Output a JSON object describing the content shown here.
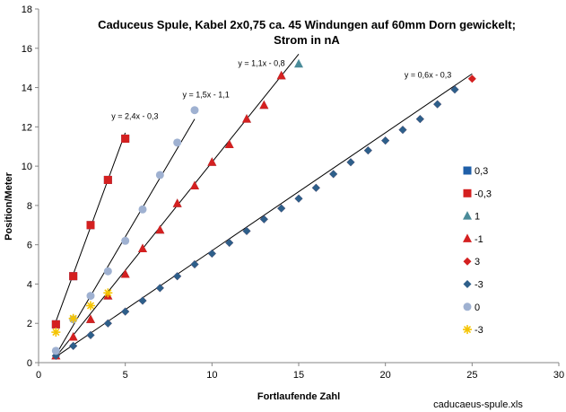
{
  "chart_data": {
    "type": "scatter",
    "title_lines": [
      "Caduceus Spule,   Kabel  2x0,75   ca. 45 Windungen auf 60mm Dorn gewickelt;",
      "Strom in nA"
    ],
    "xlabel": "Fortlaufende Zahl",
    "ylabel": "Position/Meter",
    "xlim": [
      0,
      30
    ],
    "ylim": [
      0,
      18
    ],
    "xticks": [
      0,
      5,
      10,
      15,
      20,
      25,
      30
    ],
    "yticks": [
      0,
      2,
      4,
      6,
      8,
      10,
      12,
      14,
      16,
      18
    ],
    "grid": false,
    "legend_position": "right",
    "footer": "caducaeus-spule.xls",
    "series": [
      {
        "name": "0,3",
        "marker": "square",
        "color": "#1F5FA8",
        "x": [
          1,
          2,
          3,
          4,
          5
        ],
        "y": [
          1.95,
          4.4,
          7.0,
          9.3,
          11.4
        ]
      },
      {
        "name": "-0,3",
        "marker": "square",
        "color": "#D42020",
        "x": [
          1,
          2,
          3,
          4,
          5
        ],
        "y": [
          1.95,
          4.4,
          7.0,
          9.3,
          11.4
        ]
      },
      {
        "name": "1",
        "marker": "triangle",
        "color": "#4A8B99",
        "x": [
          1,
          2,
          3,
          4,
          5,
          6,
          7,
          8,
          9,
          10,
          11,
          12,
          13,
          14,
          15
        ],
        "y": [
          0.35,
          1.3,
          2.2,
          3.4,
          4.5,
          5.8,
          6.75,
          8.1,
          9.0,
          10.2,
          11.1,
          12.4,
          13.1,
          14.6,
          15.2
        ]
      },
      {
        "name": "-1",
        "marker": "triangle",
        "color": "#D42020",
        "x": [
          1,
          2,
          3,
          4,
          5,
          6,
          7,
          8,
          9,
          10,
          11,
          12,
          13,
          14
        ],
        "y": [
          0.35,
          1.3,
          2.2,
          3.4,
          4.5,
          5.8,
          6.75,
          8.1,
          9.0,
          10.2,
          11.1,
          12.4,
          13.1,
          14.6
        ]
      },
      {
        "name": "3",
        "marker": "diamond",
        "color": "#D42020",
        "x": [
          1,
          2,
          3,
          4,
          5,
          6,
          7,
          8,
          9,
          10,
          11,
          12,
          13,
          14,
          15,
          16,
          17,
          18,
          19,
          20,
          21,
          22,
          23,
          24,
          25
        ],
        "y": [
          0.35,
          0.85,
          1.4,
          2.0,
          2.6,
          3.15,
          3.8,
          4.4,
          5.0,
          5.55,
          6.1,
          6.7,
          7.3,
          7.85,
          8.35,
          8.9,
          9.6,
          10.2,
          10.8,
          11.3,
          11.85,
          12.4,
          13.15,
          13.9,
          14.45
        ]
      },
      {
        "name": "-3",
        "marker": "diamond",
        "color": "#2E5F8A",
        "x": [
          1,
          2,
          3,
          4,
          5,
          6,
          7,
          8,
          9,
          10,
          11,
          12,
          13,
          14,
          15,
          16,
          17,
          18,
          19,
          20,
          21,
          22,
          23,
          24
        ],
        "y": [
          0.35,
          0.85,
          1.4,
          2.0,
          2.6,
          3.15,
          3.8,
          4.4,
          5.0,
          5.55,
          6.1,
          6.7,
          7.3,
          7.85,
          8.35,
          8.9,
          9.6,
          10.2,
          10.8,
          11.3,
          11.85,
          12.4,
          13.15,
          13.9
        ]
      },
      {
        "name": "0",
        "marker": "circle",
        "color": "#9FB1D1",
        "x": [
          1,
          2,
          3,
          4,
          5,
          6,
          7,
          8,
          9
        ],
        "y": [
          0.6,
          2.2,
          3.4,
          4.65,
          6.2,
          7.8,
          9.55,
          11.2,
          12.85
        ]
      },
      {
        "name": "-3",
        "marker": "star",
        "color": "#F5C400",
        "x": [
          1,
          2,
          3,
          4
        ],
        "y": [
          1.55,
          2.25,
          2.9,
          3.55
        ]
      }
    ],
    "trendlines": [
      {
        "label": "y = 2,4x - 0,3",
        "slope": 2.4,
        "intercept": -0.3,
        "x_range": [
          1,
          5
        ],
        "label_at": [
          4.2,
          12.4
        ]
      },
      {
        "label": "y = 1,5x - 1,1",
        "slope": 1.5,
        "intercept": -1.1,
        "x_range": [
          1,
          9
        ],
        "label_at": [
          8.3,
          13.5
        ]
      },
      {
        "label": "y = 1,1x - 0,8",
        "slope": 1.1,
        "intercept": -0.8,
        "x_range": [
          1,
          15
        ],
        "label_at": [
          11.5,
          15.1
        ]
      },
      {
        "label": "y = 0,6x - 0,3",
        "slope": 0.6,
        "intercept": -0.3,
        "x_range": [
          1,
          25
        ],
        "label_at": [
          21.1,
          14.5
        ]
      }
    ]
  }
}
